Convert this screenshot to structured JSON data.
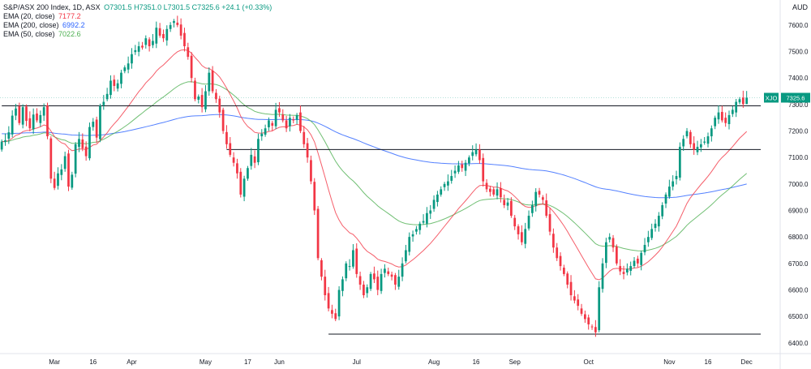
{
  "header": {
    "symbol_line": "S&P/ASX 200 Index, 1D, ASX",
    "ohlc": "O7301.5 H7351.0 L7301.5 C7325.6 +24.1 (+0.33%)",
    "currency": "AUD"
  },
  "indicators": [
    {
      "label": "EMA (20, close)",
      "value": "7177.2",
      "color": "#f23645"
    },
    {
      "label": "EMA (200, close)",
      "value": "6992.2",
      "color": "#2962ff"
    },
    {
      "label": "EMA (50, close)",
      "value": "7022.6",
      "color": "#4caf50"
    }
  ],
  "price_tag": {
    "symbol": "XJO",
    "value": "7325.6",
    "color": "#089981"
  },
  "chart_data": {
    "type": "candlestick",
    "title": "S&P/ASX 200 Index, 1D, ASX",
    "y_ticks": [
      6400,
      6500,
      6600,
      6700,
      6800,
      6900,
      7000,
      7100,
      7200,
      7300,
      7400,
      7500,
      7600
    ],
    "ylim": [
      6378,
      7670
    ],
    "x_ticks": [
      {
        "label": "Mar",
        "day": 15
      },
      {
        "label": "16",
        "day": 26
      },
      {
        "label": "Apr",
        "day": 37
      },
      {
        "label": "May",
        "day": 58
      },
      {
        "label": "17",
        "day": 70
      },
      {
        "label": "Jun",
        "day": 79
      },
      {
        "label": "Jul",
        "day": 101
      },
      {
        "label": "Aug",
        "day": 123
      },
      {
        "label": "16",
        "day": 135
      },
      {
        "label": "Sep",
        "day": 146
      },
      {
        "label": "Oct",
        "day": 167
      },
      {
        "label": "Nov",
        "day": 190
      },
      {
        "label": "16",
        "day": 201
      },
      {
        "label": "Dec",
        "day": 212
      }
    ],
    "day_range": [
      -0.5,
      216
    ],
    "horizontal_lines": [
      {
        "price": 7295,
        "from_day": 0,
        "to_day": 216
      },
      {
        "price": 7130,
        "from_day": 64,
        "to_day": 216
      },
      {
        "price": 6433,
        "from_day": 93,
        "to_day": 216
      }
    ],
    "current_price": 7325.6,
    "closes": [
      7160,
      7165,
      7195,
      7258,
      7285,
      7230,
      7290,
      7238,
      7210,
      7262,
      7240,
      7260,
      7290,
      7180,
      7020,
      6985,
      7040,
      7055,
      7105,
      6990,
      7035,
      7150,
      7170,
      7135,
      7105,
      7215,
      7235,
      7175,
      7295,
      7310,
      7340,
      7390,
      7370,
      7380,
      7420,
      7440,
      7455,
      7490,
      7505,
      7520,
      7515,
      7550,
      7520,
      7540,
      7590,
      7560,
      7550,
      7585,
      7600,
      7615,
      7600,
      7560,
      7520,
      7480,
      7400,
      7320,
      7330,
      7290,
      7350,
      7420,
      7350,
      7320,
      7270,
      7200,
      7150,
      7110,
      7080,
      7040,
      6960,
      7020,
      7060,
      7110,
      7080,
      7170,
      7190,
      7210,
      7240,
      7220,
      7280,
      7270,
      7240,
      7210,
      7250,
      7240,
      7260,
      7200,
      7150,
      7100,
      7010,
      6900,
      6720,
      6650,
      6580,
      6530,
      6510,
      6490,
      6600,
      6640,
      6700,
      6690,
      6750,
      6660,
      6620,
      6580,
      6610,
      6660,
      6640,
      6600,
      6660,
      6680,
      6660,
      6650,
      6620,
      6650,
      6700,
      6750,
      6800,
      6810,
      6830,
      6850,
      6860,
      6890,
      6900,
      6940,
      6960,
      6980,
      7000,
      7010,
      7030,
      7050,
      7070,
      7060,
      7080,
      7100,
      7120,
      7130,
      7090,
      7010,
      6980,
      6970,
      6960,
      6980,
      6950,
      6920,
      6930,
      6880,
      6840,
      6810,
      6780,
      6830,
      6880,
      6920,
      6970,
      6960,
      6940,
      6880,
      6820,
      6760,
      6720,
      6690,
      6660,
      6620,
      6580,
      6560,
      6540,
      6510,
      6490,
      6470,
      6460,
      6440,
      6610,
      6700,
      6780,
      6800,
      6760,
      6700,
      6670,
      6660,
      6680,
      6690,
      6710,
      6700,
      6740,
      6770,
      6800,
      6830,
      6850,
      6880,
      6920,
      6960,
      6990,
      7010,
      7030,
      7140,
      7170,
      7200,
      7150,
      7130,
      7140,
      7150,
      7160,
      7180,
      7210,
      7250,
      7270,
      7240,
      7230,
      7260,
      7280,
      7310,
      7320,
      7301.5,
      7325.6
    ]
  }
}
